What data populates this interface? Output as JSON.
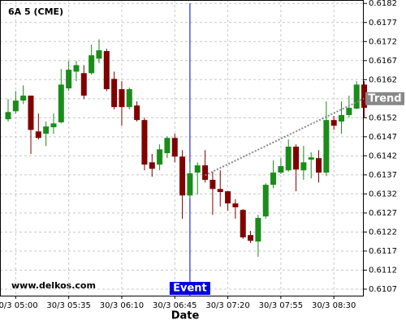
{
  "chart_data": {
    "type": "candlestick",
    "title": "6A 5 (CME)",
    "xlabel": "Date",
    "watermark": "www.delkos.com",
    "x": [
      "30/3 04:55",
      "30/3 05:00",
      "30/3 05:05",
      "30/3 05:10",
      "30/3 05:15",
      "30/3 05:20",
      "30/3 05:25",
      "30/3 05:30",
      "30/3 05:35",
      "30/3 05:40",
      "30/3 05:45",
      "30/3 05:50",
      "30/3 05:55",
      "30/3 06:00",
      "30/3 06:05",
      "30/3 06:10",
      "30/3 06:15",
      "30/3 06:20",
      "30/3 06:25",
      "30/3 06:30",
      "30/3 06:35",
      "30/3 06:40",
      "30/3 06:45",
      "30/3 06:50",
      "30/3 06:55",
      "30/3 07:00",
      "30/3 07:05",
      "30/3 07:10",
      "30/3 07:15",
      "30/3 07:20",
      "30/3 07:25",
      "30/3 07:30",
      "30/3 07:35",
      "30/3 07:40",
      "30/3 07:45",
      "30/3 07:50",
      "30/3 07:55",
      "30/3 08:00",
      "30/3 08:05",
      "30/3 08:10",
      "30/3 08:15",
      "30/3 08:20",
      "30/3 08:25",
      "30/3 08:30",
      "30/3 08:35",
      "30/3 08:40",
      "30/3 08:45",
      "30/3 08:50"
    ],
    "open": [
      0.61516,
      0.61537,
      0.61565,
      0.61578,
      0.61484,
      0.61478,
      0.61495,
      0.61508,
      0.61597,
      0.61641,
      0.61637,
      0.61637,
      0.61675,
      0.61695,
      0.61622,
      0.61595,
      0.61548,
      0.61552,
      0.61514,
      0.61403,
      0.61397,
      0.61427,
      0.61467,
      0.61418,
      0.61316,
      0.61376,
      0.61395,
      0.61357,
      0.61333,
      0.61327,
      0.61295,
      0.61278,
      0.61212,
      0.61195,
      0.61261,
      0.61344,
      0.61376,
      0.61382,
      0.61444,
      0.61382,
      0.6141,
      0.61414,
      0.61376,
      0.61514,
      0.6151,
      0.61527,
      0.61544,
      0.61607
    ],
    "high": [
      0.61569,
      0.6159,
      0.61605,
      0.61578,
      0.61531,
      0.6151,
      0.61531,
      0.61648,
      0.61669,
      0.61669,
      0.61658,
      0.61712,
      0.61726,
      0.61701,
      0.61641,
      0.61616,
      0.61599,
      0.61563,
      0.6152,
      0.61425,
      0.6145,
      0.61471,
      0.61478,
      0.61435,
      0.61403,
      0.61403,
      0.61435,
      0.61378,
      0.61382,
      0.61327,
      0.61306,
      0.6128,
      0.61223,
      0.61265,
      0.61348,
      0.61408,
      0.61414,
      0.61463,
      0.6145,
      0.61446,
      0.61429,
      0.61435,
      0.61563,
      0.61525,
      0.61563,
      0.61578,
      0.61616,
      0.61616
    ],
    "low": [
      0.6151,
      0.61531,
      0.61556,
      0.61425,
      0.61463,
      0.61446,
      0.61478,
      0.61505,
      0.6159,
      0.61616,
      0.61569,
      0.61633,
      0.61663,
      0.6159,
      0.61542,
      0.61499,
      0.61542,
      0.6151,
      0.61382,
      0.61365,
      0.61382,
      0.61414,
      0.61403,
      0.61255,
      0.61308,
      0.61318,
      0.6135,
      0.61265,
      0.61287,
      0.61276,
      0.61255,
      0.61202,
      0.61191,
      0.61155,
      0.61255,
      0.61335,
      0.61372,
      0.61378,
      0.61327,
      0.61357,
      0.61361,
      0.6135,
      0.61367,
      0.61488,
      0.61478,
      0.6152,
      0.61542,
      0.6152
    ],
    "close": [
      0.61535,
      0.61565,
      0.61578,
      0.61488,
      0.61467,
      0.61497,
      0.61505,
      0.61607,
      0.61646,
      0.61658,
      0.61578,
      0.61684,
      0.61697,
      0.61595,
      0.61548,
      0.61548,
      0.61595,
      0.61514,
      0.61397,
      0.61386,
      0.61437,
      0.61467,
      0.61418,
      0.61316,
      0.61374,
      0.61395,
      0.61357,
      0.61333,
      0.61325,
      0.61295,
      0.61285,
      0.61206,
      0.61197,
      0.61257,
      0.61344,
      0.61376,
      0.61393,
      0.61444,
      0.61384,
      0.61403,
      0.61416,
      0.61376,
      0.61514,
      0.61499,
      0.61527,
      0.61546,
      0.61607,
      0.61546
    ],
    "up_color": "#1a8c1a",
    "down_color": "#800000",
    "ylim": [
      0.61053,
      0.61829
    ],
    "yticks": [
      0.6107,
      0.6112,
      0.6117,
      0.6122,
      0.6127,
      0.6132,
      0.6137,
      0.6142,
      0.6147,
      0.6152,
      0.6157,
      0.6162,
      0.6167,
      0.6172,
      0.6177,
      0.6182
    ],
    "xticks": [
      "30/3 05:00",
      "30/3 05:35",
      "30/3 06:10",
      "30/3 06:45",
      "30/3 07:20",
      "30/3 07:55",
      "30/3 08:30"
    ],
    "grid": true,
    "event": {
      "label": "Event",
      "x": "30/3 06:55",
      "color": "#0000dd"
    },
    "trend": {
      "label": "Trend",
      "x": [
        "30/3 07:05",
        "30/3 08:55"
      ],
      "y": [
        0.61369,
        0.6157
      ]
    }
  }
}
